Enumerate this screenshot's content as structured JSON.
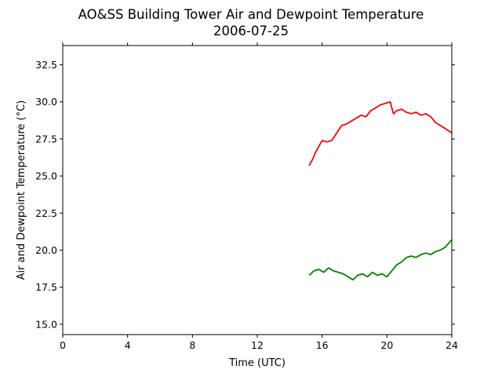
{
  "chart_data": {
    "type": "line",
    "title": "AO&SS Building Tower Air and Dewpoint Temperature",
    "subtitle": "2006-07-25",
    "xlabel": "Time (UTC)",
    "ylabel": "Air and Dewpoint Temperature (°C)",
    "xlim": [
      0,
      24
    ],
    "ylim": [
      14.3,
      33.8
    ],
    "xticks": [
      "0",
      "4",
      "8",
      "12",
      "16",
      "20",
      "24"
    ],
    "yticks": [
      "15.0",
      "17.5",
      "20.0",
      "22.5",
      "25.0",
      "27.5",
      "30.0",
      "32.5"
    ],
    "grid": false,
    "legend": "none",
    "series": [
      {
        "color": "#ff0000",
        "x": [
          15.2,
          15.4,
          15.6,
          15.8,
          16.0,
          16.3,
          16.6,
          16.9,
          17.2,
          17.5,
          17.8,
          18.1,
          18.4,
          18.7,
          19.0,
          19.3,
          19.6,
          19.9,
          20.2,
          20.4,
          20.6,
          20.9,
          21.2,
          21.5,
          21.8,
          22.1,
          22.4,
          22.7,
          23.0,
          23.3,
          23.6,
          24.0
        ],
        "y": [
          25.7,
          26.1,
          26.6,
          27.0,
          27.4,
          27.3,
          27.4,
          27.9,
          28.4,
          28.5,
          28.7,
          28.9,
          29.1,
          29.0,
          29.4,
          29.6,
          29.8,
          29.9,
          30.0,
          29.2,
          29.4,
          29.5,
          29.3,
          29.2,
          29.3,
          29.1,
          29.2,
          29.0,
          28.6,
          28.4,
          28.2,
          27.9
        ]
      },
      {
        "color": "#008000",
        "x": [
          15.2,
          15.5,
          15.8,
          16.1,
          16.4,
          16.7,
          17.0,
          17.3,
          17.6,
          17.9,
          18.2,
          18.5,
          18.8,
          19.1,
          19.4,
          19.7,
          20.0,
          20.3,
          20.6,
          20.9,
          21.2,
          21.5,
          21.8,
          22.1,
          22.4,
          22.7,
          23.0,
          23.3,
          23.6,
          24.0
        ],
        "y": [
          18.3,
          18.6,
          18.7,
          18.5,
          18.8,
          18.6,
          18.5,
          18.4,
          18.2,
          18.0,
          18.3,
          18.4,
          18.2,
          18.5,
          18.3,
          18.4,
          18.2,
          18.6,
          19.0,
          19.2,
          19.5,
          19.6,
          19.5,
          19.7,
          19.8,
          19.7,
          19.9,
          20.0,
          20.2,
          20.7
        ]
      }
    ]
  }
}
